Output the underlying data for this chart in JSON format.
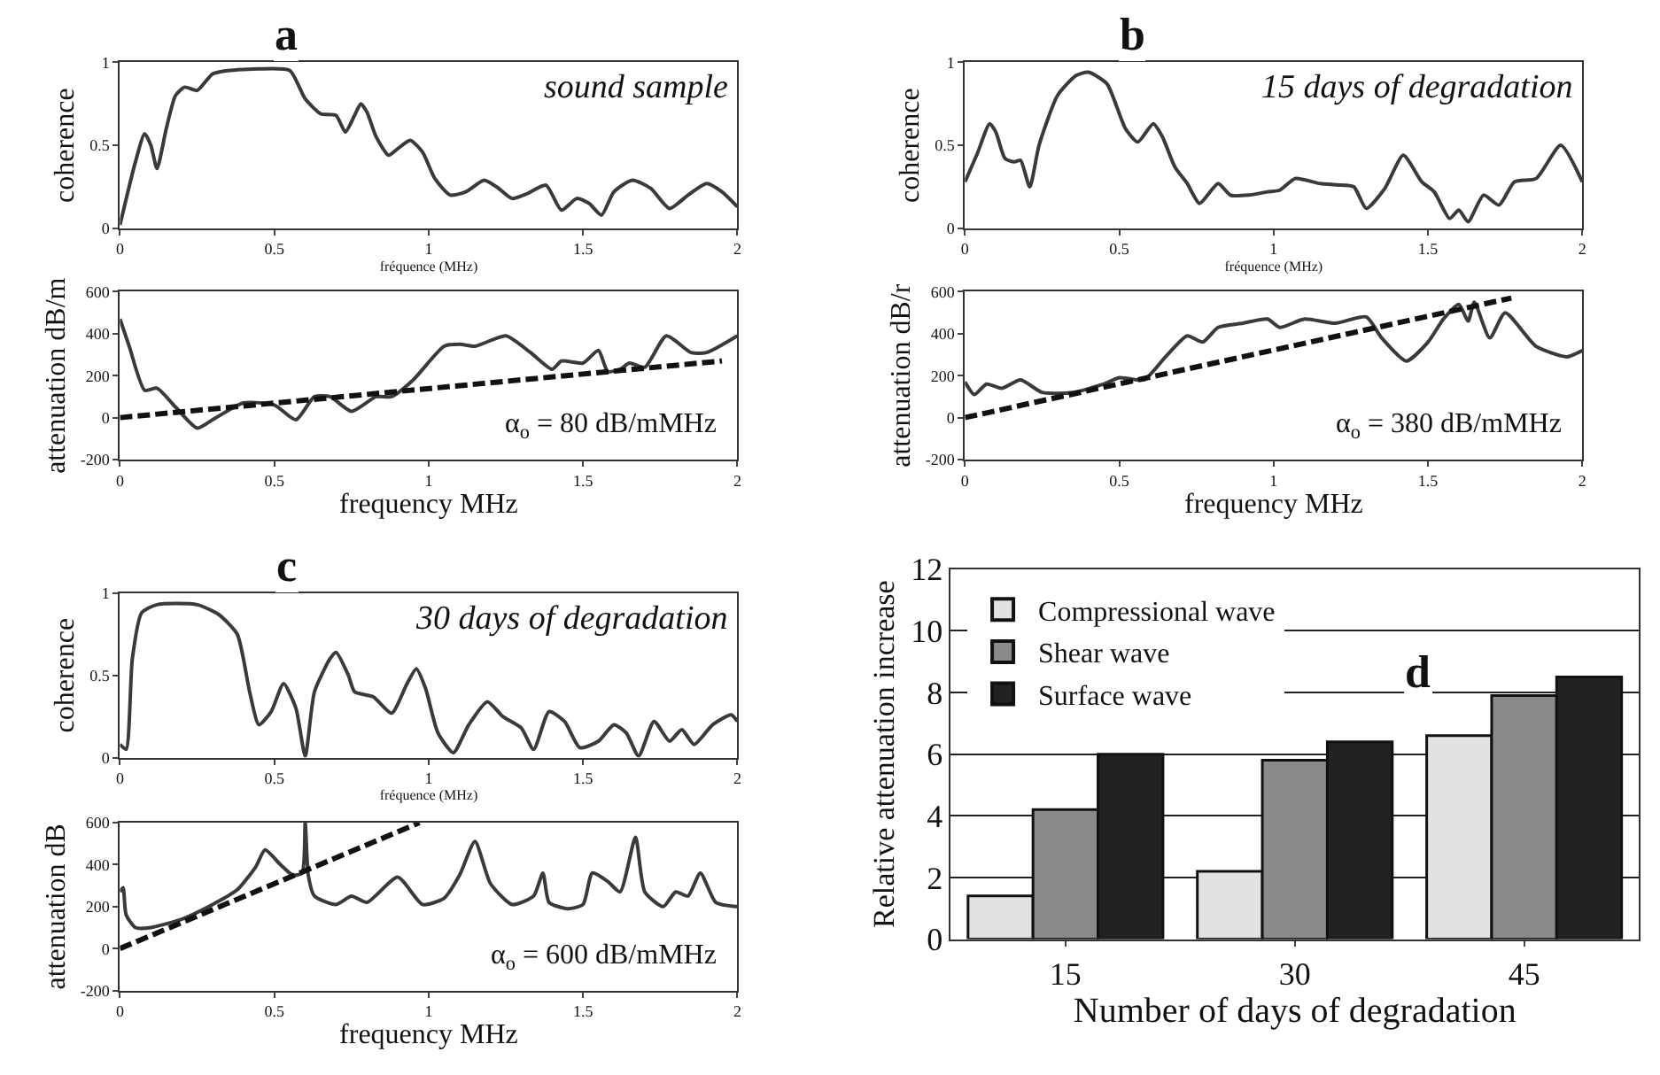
{
  "chart_data": [
    {
      "type": "line",
      "title": "a",
      "subtitle": "sound sample",
      "xlabel": "fréquence (MHz)",
      "ylabel": "coherence",
      "xlim": [
        0,
        2
      ],
      "xticks": [
        0,
        0.5,
        1,
        1.5,
        2
      ],
      "ylim": [
        0,
        1
      ],
      "yticks": [
        0,
        0.5,
        1
      ],
      "grid": false,
      "legend": false,
      "series": [
        {
          "color": "#3a3a3a",
          "x": [
            0,
            0.05,
            0.08,
            0.1,
            0.12,
            0.15,
            0.18,
            0.21,
            0.25,
            0.3,
            0.35,
            0.45,
            0.55,
            0.6,
            0.65,
            0.7,
            0.73,
            0.76,
            0.78,
            0.8,
            0.83,
            0.87,
            0.9,
            0.94,
            0.98,
            1.02,
            1.07,
            1.12,
            1.18,
            1.22,
            1.27,
            1.32,
            1.38,
            1.43,
            1.48,
            1.52,
            1.56,
            1.6,
            1.66,
            1.72,
            1.78,
            1.84,
            1.9,
            1.95,
            2
          ],
          "values": [
            0.02,
            0.4,
            0.57,
            0.5,
            0.36,
            0.6,
            0.8,
            0.85,
            0.83,
            0.93,
            0.95,
            0.96,
            0.95,
            0.78,
            0.69,
            0.68,
            0.58,
            0.68,
            0.75,
            0.7,
            0.55,
            0.44,
            0.48,
            0.53,
            0.46,
            0.3,
            0.2,
            0.22,
            0.29,
            0.25,
            0.18,
            0.21,
            0.26,
            0.11,
            0.18,
            0.15,
            0.08,
            0.22,
            0.29,
            0.24,
            0.12,
            0.2,
            0.27,
            0.22,
            0.13
          ]
        }
      ]
    },
    {
      "type": "line",
      "xlabel": "frequency MHz",
      "ylabel": "attenuation dB/m",
      "xlim": [
        0,
        2
      ],
      "xticks": [
        0,
        0.5,
        1,
        1.5,
        2
      ],
      "ylim": [
        -200,
        600
      ],
      "yticks": [
        -200,
        0,
        200,
        400,
        600
      ],
      "grid": false,
      "legend": false,
      "annotations": [
        "α$_{o}$ = 80 dB/mMHz"
      ],
      "series": [
        {
          "color": "#3a3a3a",
          "x": [
            0,
            0.03,
            0.08,
            0.12,
            0.18,
            0.25,
            0.3,
            0.4,
            0.5,
            0.57,
            0.63,
            0.68,
            0.75,
            0.83,
            0.88,
            0.95,
            1.05,
            1.1,
            1.15,
            1.25,
            1.33,
            1.4,
            1.43,
            1.5,
            1.55,
            1.58,
            1.62,
            1.65,
            1.7,
            1.77,
            1.85,
            1.9,
            2
          ],
          "values": [
            470,
            340,
            130,
            140,
            50,
            -50,
            -10,
            70,
            60,
            -10,
            100,
            100,
            30,
            100,
            100,
            180,
            340,
            350,
            340,
            390,
            310,
            230,
            270,
            260,
            320,
            220,
            230,
            260,
            240,
            390,
            310,
            310,
            390
          ]
        },
        {
          "type": "line",
          "line_style": "dashed",
          "color": "#111111",
          "x": [
            0,
            1.95
          ],
          "values": [
            0,
            270
          ]
        }
      ]
    },
    {
      "type": "line",
      "title": "b",
      "subtitle": "15 days of degradation",
      "xlabel": "fréquence (MHz)",
      "ylabel": "coherence",
      "xlim": [
        0,
        2
      ],
      "xticks": [
        0,
        0.5,
        1,
        1.5,
        2
      ],
      "ylim": [
        0,
        1
      ],
      "yticks": [
        0,
        0.5,
        1
      ],
      "grid": false,
      "legend": false,
      "series": [
        {
          "color": "#3a3a3a",
          "x": [
            0,
            0.04,
            0.08,
            0.1,
            0.13,
            0.16,
            0.18,
            0.21,
            0.24,
            0.3,
            0.36,
            0.4,
            0.46,
            0.52,
            0.56,
            0.61,
            0.64,
            0.68,
            0.72,
            0.76,
            0.82,
            0.86,
            0.92,
            0.98,
            1.02,
            1.07,
            1.15,
            1.22,
            1.26,
            1.3,
            1.36,
            1.42,
            1.48,
            1.52,
            1.57,
            1.6,
            1.63,
            1.68,
            1.73,
            1.78,
            1.85,
            1.93,
            2
          ],
          "values": [
            0.28,
            0.45,
            0.63,
            0.58,
            0.42,
            0.4,
            0.41,
            0.25,
            0.5,
            0.8,
            0.92,
            0.94,
            0.87,
            0.6,
            0.52,
            0.63,
            0.55,
            0.37,
            0.27,
            0.15,
            0.27,
            0.2,
            0.2,
            0.22,
            0.23,
            0.3,
            0.27,
            0.26,
            0.25,
            0.12,
            0.24,
            0.44,
            0.28,
            0.22,
            0.06,
            0.11,
            0.04,
            0.2,
            0.14,
            0.28,
            0.3,
            0.5,
            0.28
          ]
        }
      ]
    },
    {
      "type": "line",
      "xlabel": "frequency MHz",
      "ylabel": "attenuation dB/r",
      "xlim": [
        0,
        2
      ],
      "xticks": [
        0,
        0.5,
        1,
        1.5,
        2
      ],
      "ylim": [
        -200,
        600
      ],
      "yticks": [
        -200,
        0,
        200,
        400,
        600
      ],
      "grid": false,
      "legend": false,
      "annotations": [
        "α$_{o}$ = 380 dB/mMHz"
      ],
      "series": [
        {
          "color": "#3a3a3a",
          "x": [
            0,
            0.03,
            0.07,
            0.12,
            0.18,
            0.25,
            0.35,
            0.45,
            0.5,
            0.58,
            0.65,
            0.72,
            0.77,
            0.82,
            0.9,
            0.98,
            1.02,
            1.1,
            1.2,
            1.3,
            1.35,
            1.43,
            1.5,
            1.55,
            1.6,
            1.63,
            1.65,
            1.7,
            1.75,
            1.85,
            1.95,
            2
          ],
          "values": [
            170,
            110,
            160,
            140,
            180,
            120,
            120,
            160,
            190,
            180,
            290,
            390,
            360,
            430,
            450,
            470,
            430,
            470,
            450,
            480,
            380,
            270,
            360,
            470,
            540,
            460,
            550,
            380,
            500,
            340,
            290,
            320
          ]
        },
        {
          "type": "line",
          "line_style": "dashed",
          "color": "#111111",
          "x": [
            0,
            1.77
          ],
          "values": [
            0,
            570
          ]
        }
      ]
    },
    {
      "type": "line",
      "title": "c",
      "subtitle": "30 days of degradation",
      "xlabel": "fréquence (MHz)",
      "ylabel": "coherence",
      "xlim": [
        0,
        2
      ],
      "xticks": [
        0,
        0.5,
        1,
        1.5,
        2
      ],
      "ylim": [
        0,
        1
      ],
      "yticks": [
        0,
        0.5,
        1
      ],
      "grid": false,
      "legend": false,
      "series": [
        {
          "color": "#3a3a3a",
          "x": [
            0,
            0.02,
            0.04,
            0.07,
            0.12,
            0.25,
            0.32,
            0.38,
            0.42,
            0.45,
            0.49,
            0.53,
            0.57,
            0.6,
            0.63,
            0.68,
            0.7,
            0.74,
            0.76,
            0.82,
            0.88,
            0.93,
            0.96,
            0.99,
            1.03,
            1.08,
            1.13,
            1.19,
            1.24,
            1.3,
            1.34,
            1.39,
            1.44,
            1.49,
            1.55,
            1.6,
            1.64,
            1.68,
            1.73,
            1.78,
            1.82,
            1.86,
            1.92,
            1.98,
            2
          ],
          "values": [
            0.08,
            0.05,
            0.6,
            0.88,
            0.93,
            0.93,
            0.87,
            0.75,
            0.4,
            0.2,
            0.28,
            0.45,
            0.3,
            0.01,
            0.4,
            0.6,
            0.64,
            0.5,
            0.4,
            0.37,
            0.27,
            0.45,
            0.54,
            0.42,
            0.15,
            0.03,
            0.2,
            0.34,
            0.25,
            0.18,
            0.05,
            0.28,
            0.22,
            0.06,
            0.1,
            0.2,
            0.15,
            0.01,
            0.22,
            0.1,
            0.17,
            0.08,
            0.2,
            0.26,
            0.22
          ]
        }
      ]
    },
    {
      "type": "line",
      "xlabel": "frequency MHz",
      "ylabel": "attenuation dB",
      "xlim": [
        0,
        2
      ],
      "xticks": [
        0,
        0.5,
        1,
        1.5,
        2
      ],
      "ylim": [
        -200,
        600
      ],
      "yticks": [
        -200,
        0,
        200,
        400,
        600
      ],
      "grid": false,
      "legend": false,
      "annotations": [
        "α$_{o}$ = 600 dB/mMHz"
      ],
      "series": [
        {
          "color": "#3a3a3a",
          "x": [
            0,
            0.01,
            0.02,
            0.05,
            0.1,
            0.2,
            0.3,
            0.38,
            0.44,
            0.47,
            0.52,
            0.56,
            0.59,
            0.6,
            0.61,
            0.63,
            0.7,
            0.75,
            0.8,
            0.9,
            0.98,
            1.05,
            1.1,
            1.15,
            1.2,
            1.27,
            1.34,
            1.37,
            1.39,
            1.45,
            1.5,
            1.53,
            1.58,
            1.62,
            1.67,
            1.7,
            1.76,
            1.8,
            1.84,
            1.88,
            1.93,
            2
          ],
          "values": [
            270,
            290,
            160,
            100,
            100,
            140,
            210,
            280,
            390,
            470,
            400,
            350,
            360,
            600,
            350,
            250,
            210,
            250,
            220,
            340,
            210,
            240,
            350,
            510,
            310,
            210,
            250,
            360,
            220,
            190,
            210,
            360,
            320,
            270,
            530,
            270,
            200,
            270,
            250,
            360,
            220,
            200
          ]
        },
        {
          "type": "line",
          "line_style": "dashed",
          "color": "#111111",
          "x": [
            0,
            0.97
          ],
          "values": [
            0,
            600
          ]
        }
      ]
    },
    {
      "type": "bar",
      "title": "d",
      "xlabel": "Number of days of degradation",
      "ylabel": "Relative attenuation increase",
      "categories": [
        "15",
        "30",
        "45"
      ],
      "ylim": [
        0,
        12
      ],
      "yticks": [
        0,
        2,
        4,
        6,
        8,
        10,
        12
      ],
      "grid": "y",
      "legend": "top left",
      "series": [
        {
          "name": "Compressional wave",
          "color": "#e2e2e2",
          "values": [
            1.4,
            2.2,
            6.6
          ]
        },
        {
          "name": "Shear wave",
          "color": "#8a8a8a",
          "values": [
            4.2,
            5.8,
            7.9
          ]
        },
        {
          "name": "Surface wave",
          "color": "#222222",
          "values": [
            6.0,
            6.4,
            8.5
          ]
        }
      ]
    }
  ]
}
